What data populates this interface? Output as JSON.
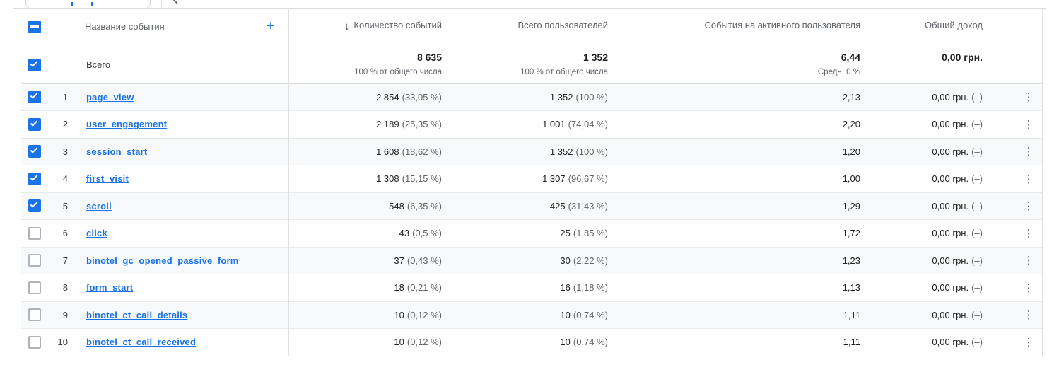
{
  "colors": {
    "accent": "#1a73e8",
    "header_text": "#5f6368",
    "row_alt_bg": "#f8f9fa"
  },
  "header": {
    "name_column": "Название события",
    "add_button": "+",
    "select_all_state": "indeterminate",
    "sort_icon": "arrow-down",
    "metric_columns": [
      "Количество событий",
      "Всего пользователей",
      "События на активного пользователя",
      "Общий доход"
    ]
  },
  "totals": {
    "label": "Всего",
    "checkbox_state": "checked",
    "metrics": [
      {
        "value": "8 635",
        "sub": "100 % от общего числа"
      },
      {
        "value": "1 352",
        "sub": "100 % от общего числа"
      },
      {
        "value": "6,44",
        "sub": "Средн. 0 %"
      },
      {
        "value": "0,00 грн.",
        "sub": ""
      }
    ]
  },
  "rows": [
    {
      "num": "1",
      "name": "page_view",
      "checked": true,
      "events": "2 854",
      "events_pct": "(33,05 %)",
      "users": "1 352",
      "users_pct": "(100 %)",
      "per_user": "2,13",
      "revenue": "0,00 грн.",
      "revenue_note": "(–)"
    },
    {
      "num": "2",
      "name": "user_engagement",
      "checked": true,
      "events": "2 189",
      "events_pct": "(25,35 %)",
      "users": "1 001",
      "users_pct": "(74,04 %)",
      "per_user": "2,20",
      "revenue": "0,00 грн.",
      "revenue_note": "(–)"
    },
    {
      "num": "3",
      "name": "session_start",
      "checked": true,
      "events": "1 608",
      "events_pct": "(18,62 %)",
      "users": "1 352",
      "users_pct": "(100 %)",
      "per_user": "1,20",
      "revenue": "0,00 грн.",
      "revenue_note": "(–)"
    },
    {
      "num": "4",
      "name": "first_visit",
      "checked": true,
      "events": "1 308",
      "events_pct": "(15,15 %)",
      "users": "1 307",
      "users_pct": "(96,67 %)",
      "per_user": "1,00",
      "revenue": "0,00 грн.",
      "revenue_note": "(–)"
    },
    {
      "num": "5",
      "name": "scroll",
      "checked": true,
      "events": "548",
      "events_pct": "(6,35 %)",
      "users": "425",
      "users_pct": "(31,43 %)",
      "per_user": "1,29",
      "revenue": "0,00 грн.",
      "revenue_note": "(–)"
    },
    {
      "num": "6",
      "name": "click",
      "checked": false,
      "events": "43",
      "events_pct": "(0,5 %)",
      "users": "25",
      "users_pct": "(1,85 %)",
      "per_user": "1,72",
      "revenue": "0,00 грн.",
      "revenue_note": "(–)"
    },
    {
      "num": "7",
      "name": "binotel_gc_opened_passive_form",
      "checked": false,
      "events": "37",
      "events_pct": "(0,43 %)",
      "users": "30",
      "users_pct": "(2,22 %)",
      "per_user": "1,23",
      "revenue": "0,00 грн.",
      "revenue_note": "(–)"
    },
    {
      "num": "8",
      "name": "form_start",
      "checked": false,
      "events": "18",
      "events_pct": "(0,21 %)",
      "users": "16",
      "users_pct": "(1,18 %)",
      "per_user": "1,13",
      "revenue": "0,00 грн.",
      "revenue_note": "(–)"
    },
    {
      "num": "9",
      "name": "binotel_ct_call_details",
      "checked": false,
      "events": "10",
      "events_pct": "(0,12 %)",
      "users": "10",
      "users_pct": "(0,74 %)",
      "per_user": "1,11",
      "revenue": "0,00 грн.",
      "revenue_note": "(–)"
    },
    {
      "num": "10",
      "name": "binotel_ct_call_received",
      "checked": false,
      "events": "10",
      "events_pct": "(0,12 %)",
      "users": "10",
      "users_pct": "(0,74 %)",
      "per_user": "1,11",
      "revenue": "0,00 грн.",
      "revenue_note": "(–)"
    }
  ]
}
